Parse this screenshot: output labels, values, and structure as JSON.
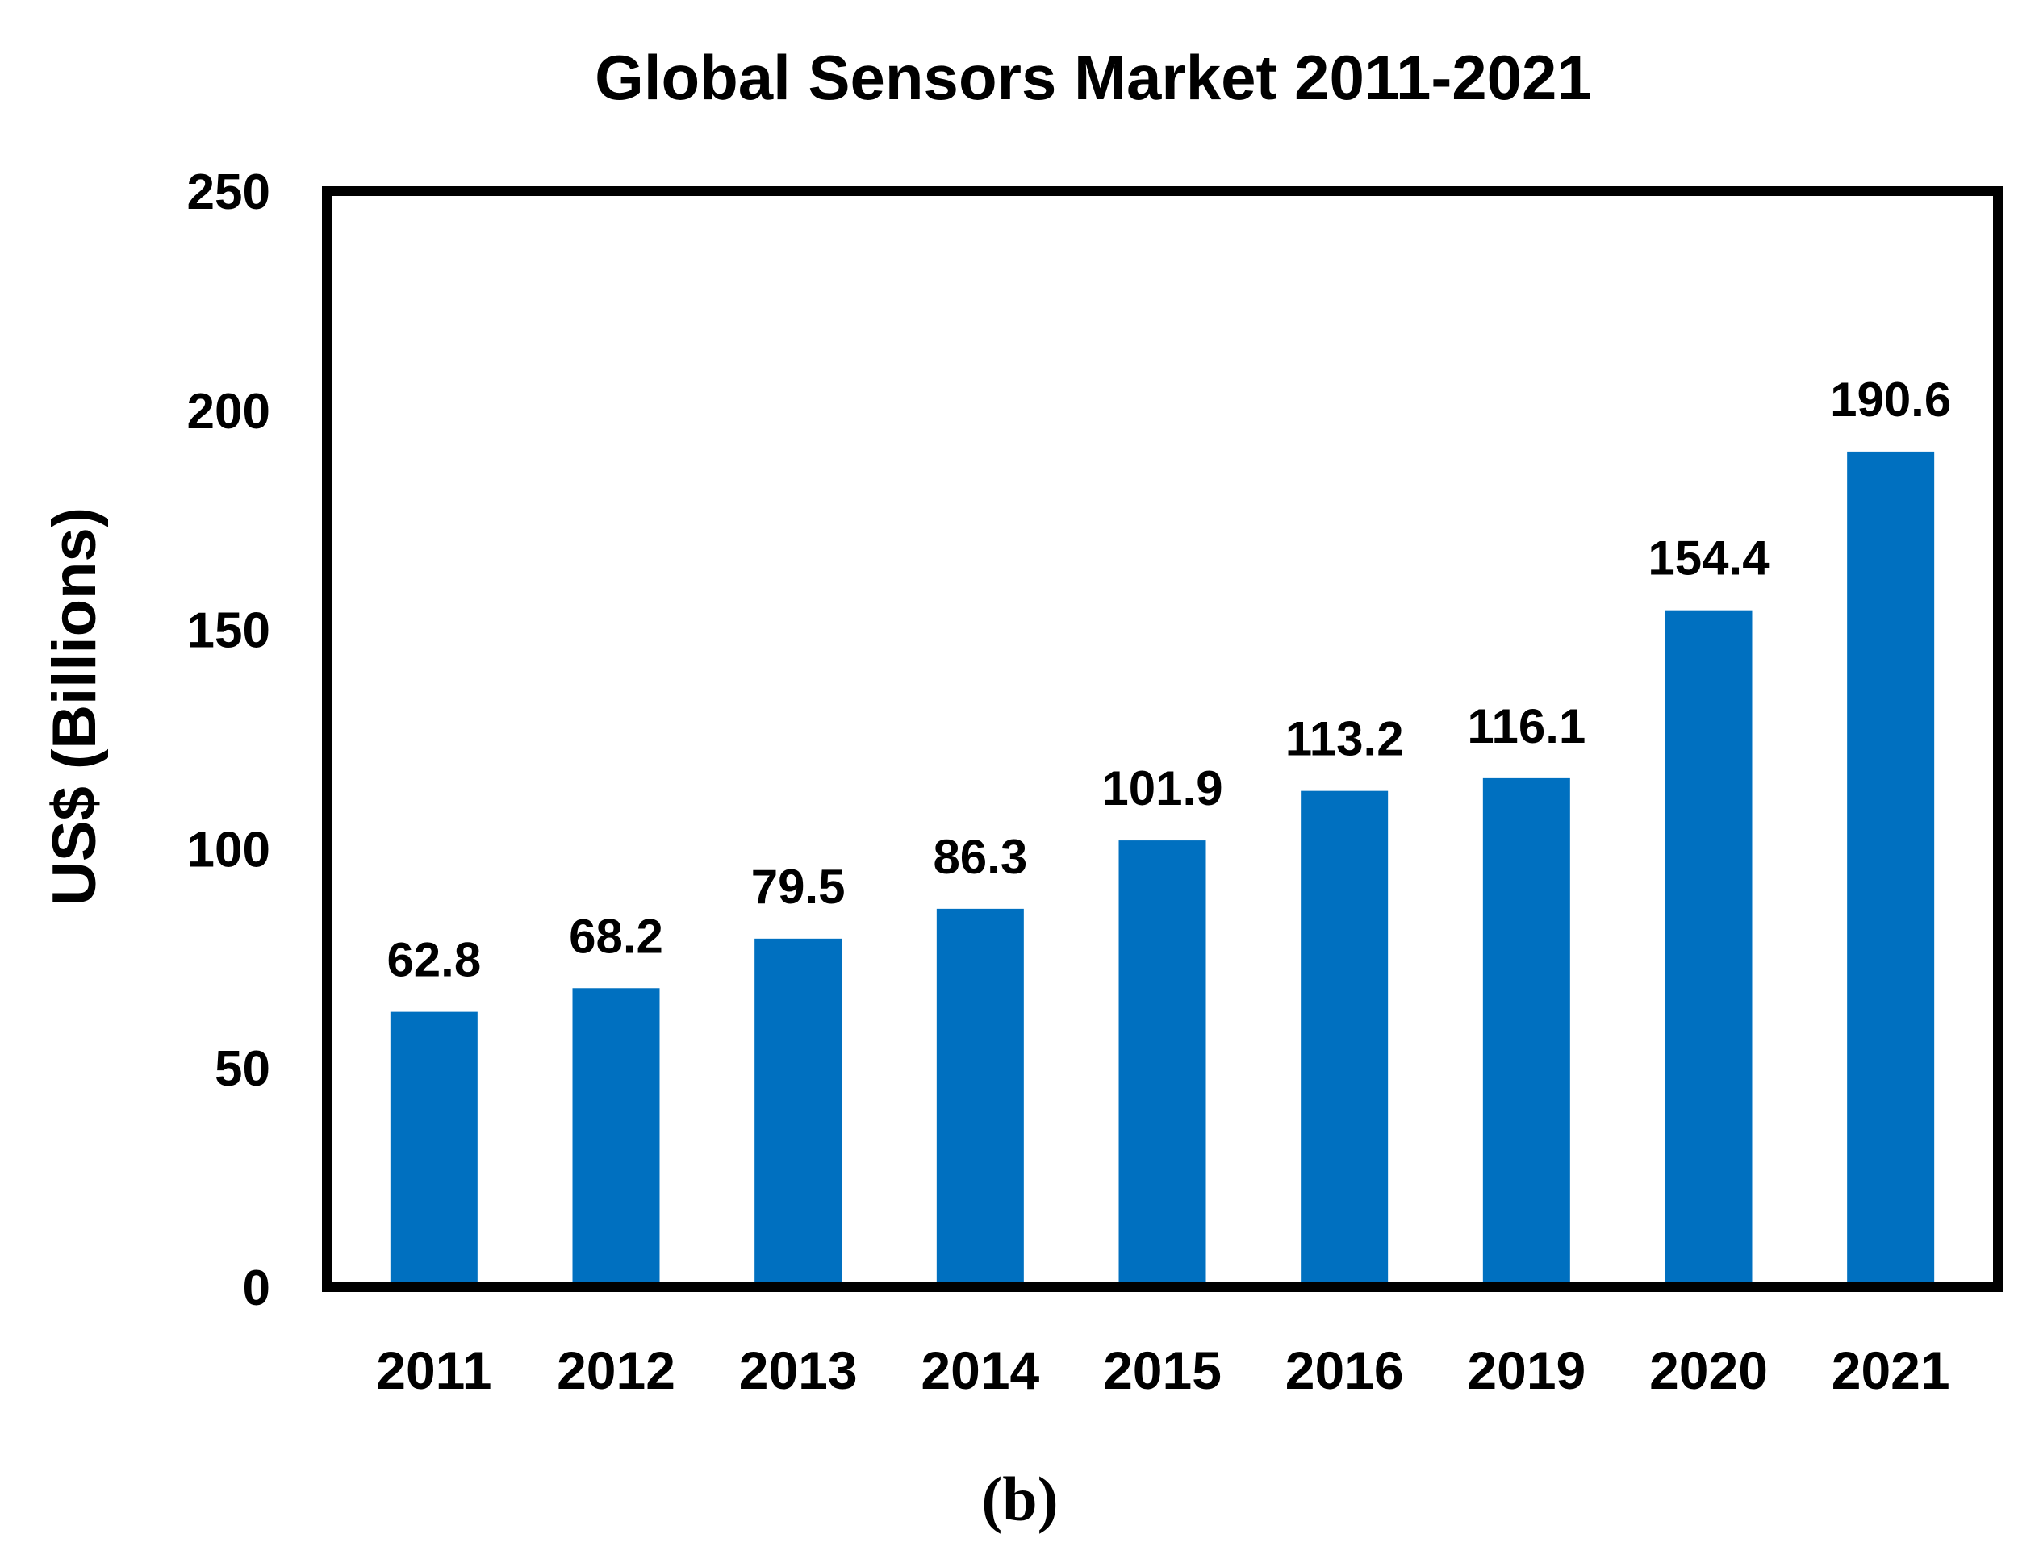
{
  "chart_data": {
    "type": "bar",
    "title": "Global Sensors Market 2011-2021",
    "xlabel": "",
    "ylabel": "US$ (Billions)",
    "categories": [
      "2011",
      "2012",
      "2013",
      "2014",
      "2015",
      "2016",
      "2019",
      "2020",
      "2021"
    ],
    "values": [
      62.8,
      68.2,
      79.5,
      86.3,
      101.9,
      113.2,
      116.1,
      154.4,
      190.6
    ],
    "data_labels": [
      "62.8",
      "68.2",
      "79.5",
      "86.3",
      "101.9",
      "113.2",
      "116.1",
      "154.4",
      "190.6"
    ],
    "ylim": [
      0,
      250
    ],
    "yticks": [
      0,
      50,
      100,
      150,
      200,
      250
    ],
    "grid": false,
    "legend": "none",
    "bar_color": "#0070C0",
    "caption": "(b)"
  }
}
